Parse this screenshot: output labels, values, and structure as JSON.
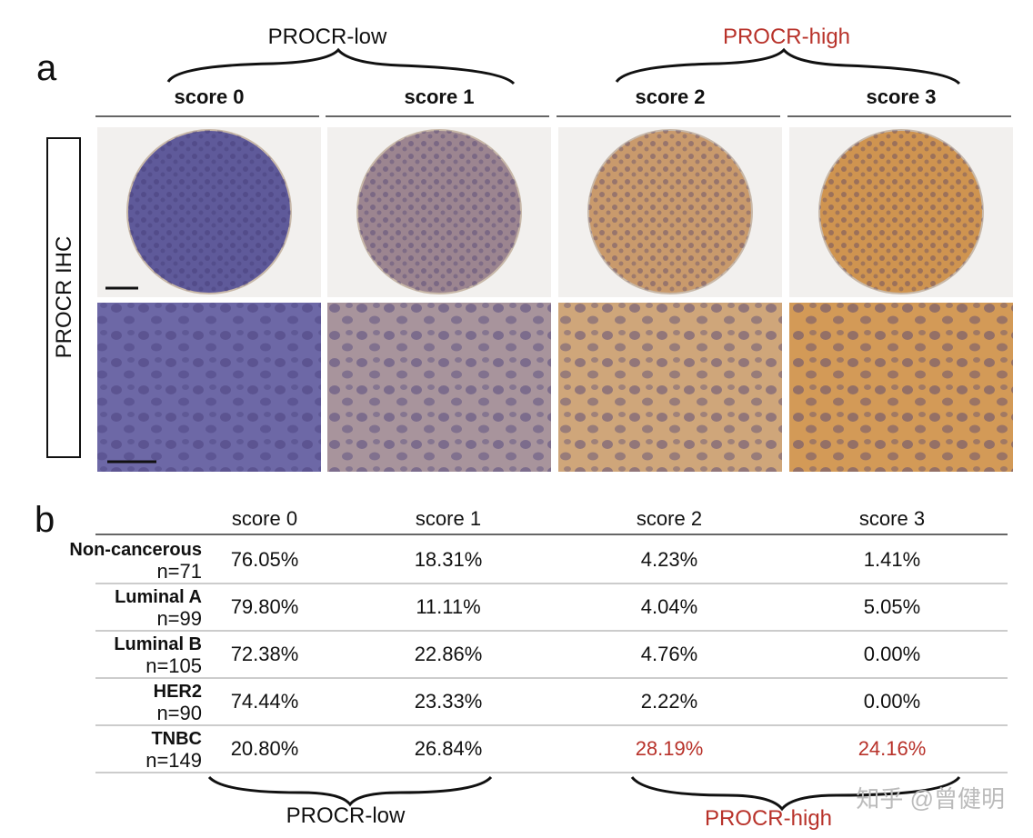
{
  "panel_a": {
    "label": "a",
    "group_low": "PROCR-low",
    "group_high": "PROCR-high",
    "scores": [
      "score 0",
      "score 1",
      "score 2",
      "score 3"
    ],
    "row_label": "PROCR IHC"
  },
  "panel_b": {
    "label": "b",
    "columns": [
      "score 0",
      "score 1",
      "score 2",
      "score 3"
    ],
    "rows": [
      {
        "name": "Non-cancerous",
        "n": "n=71",
        "values": [
          "76.05%",
          "18.31%",
          "4.23%",
          "1.41%"
        ]
      },
      {
        "name": "Luminal A",
        "n": "n=99",
        "values": [
          "79.80%",
          "11.11%",
          "4.04%",
          "5.05%"
        ]
      },
      {
        "name": "Luminal B",
        "n": "n=105",
        "values": [
          "72.38%",
          "22.86%",
          "4.76%",
          "0.00%"
        ]
      },
      {
        "name": "HER2",
        "n": "n=90",
        "values": [
          "74.44%",
          "23.33%",
          "2.22%",
          "0.00%"
        ]
      },
      {
        "name": "TNBC",
        "n": "n=149",
        "values": [
          "20.80%",
          "26.84%",
          "28.19%",
          "24.16%"
        ]
      }
    ],
    "group_low": "PROCR-low",
    "group_high": "PROCR-high"
  },
  "watermark": "知乎 @曾健明"
}
